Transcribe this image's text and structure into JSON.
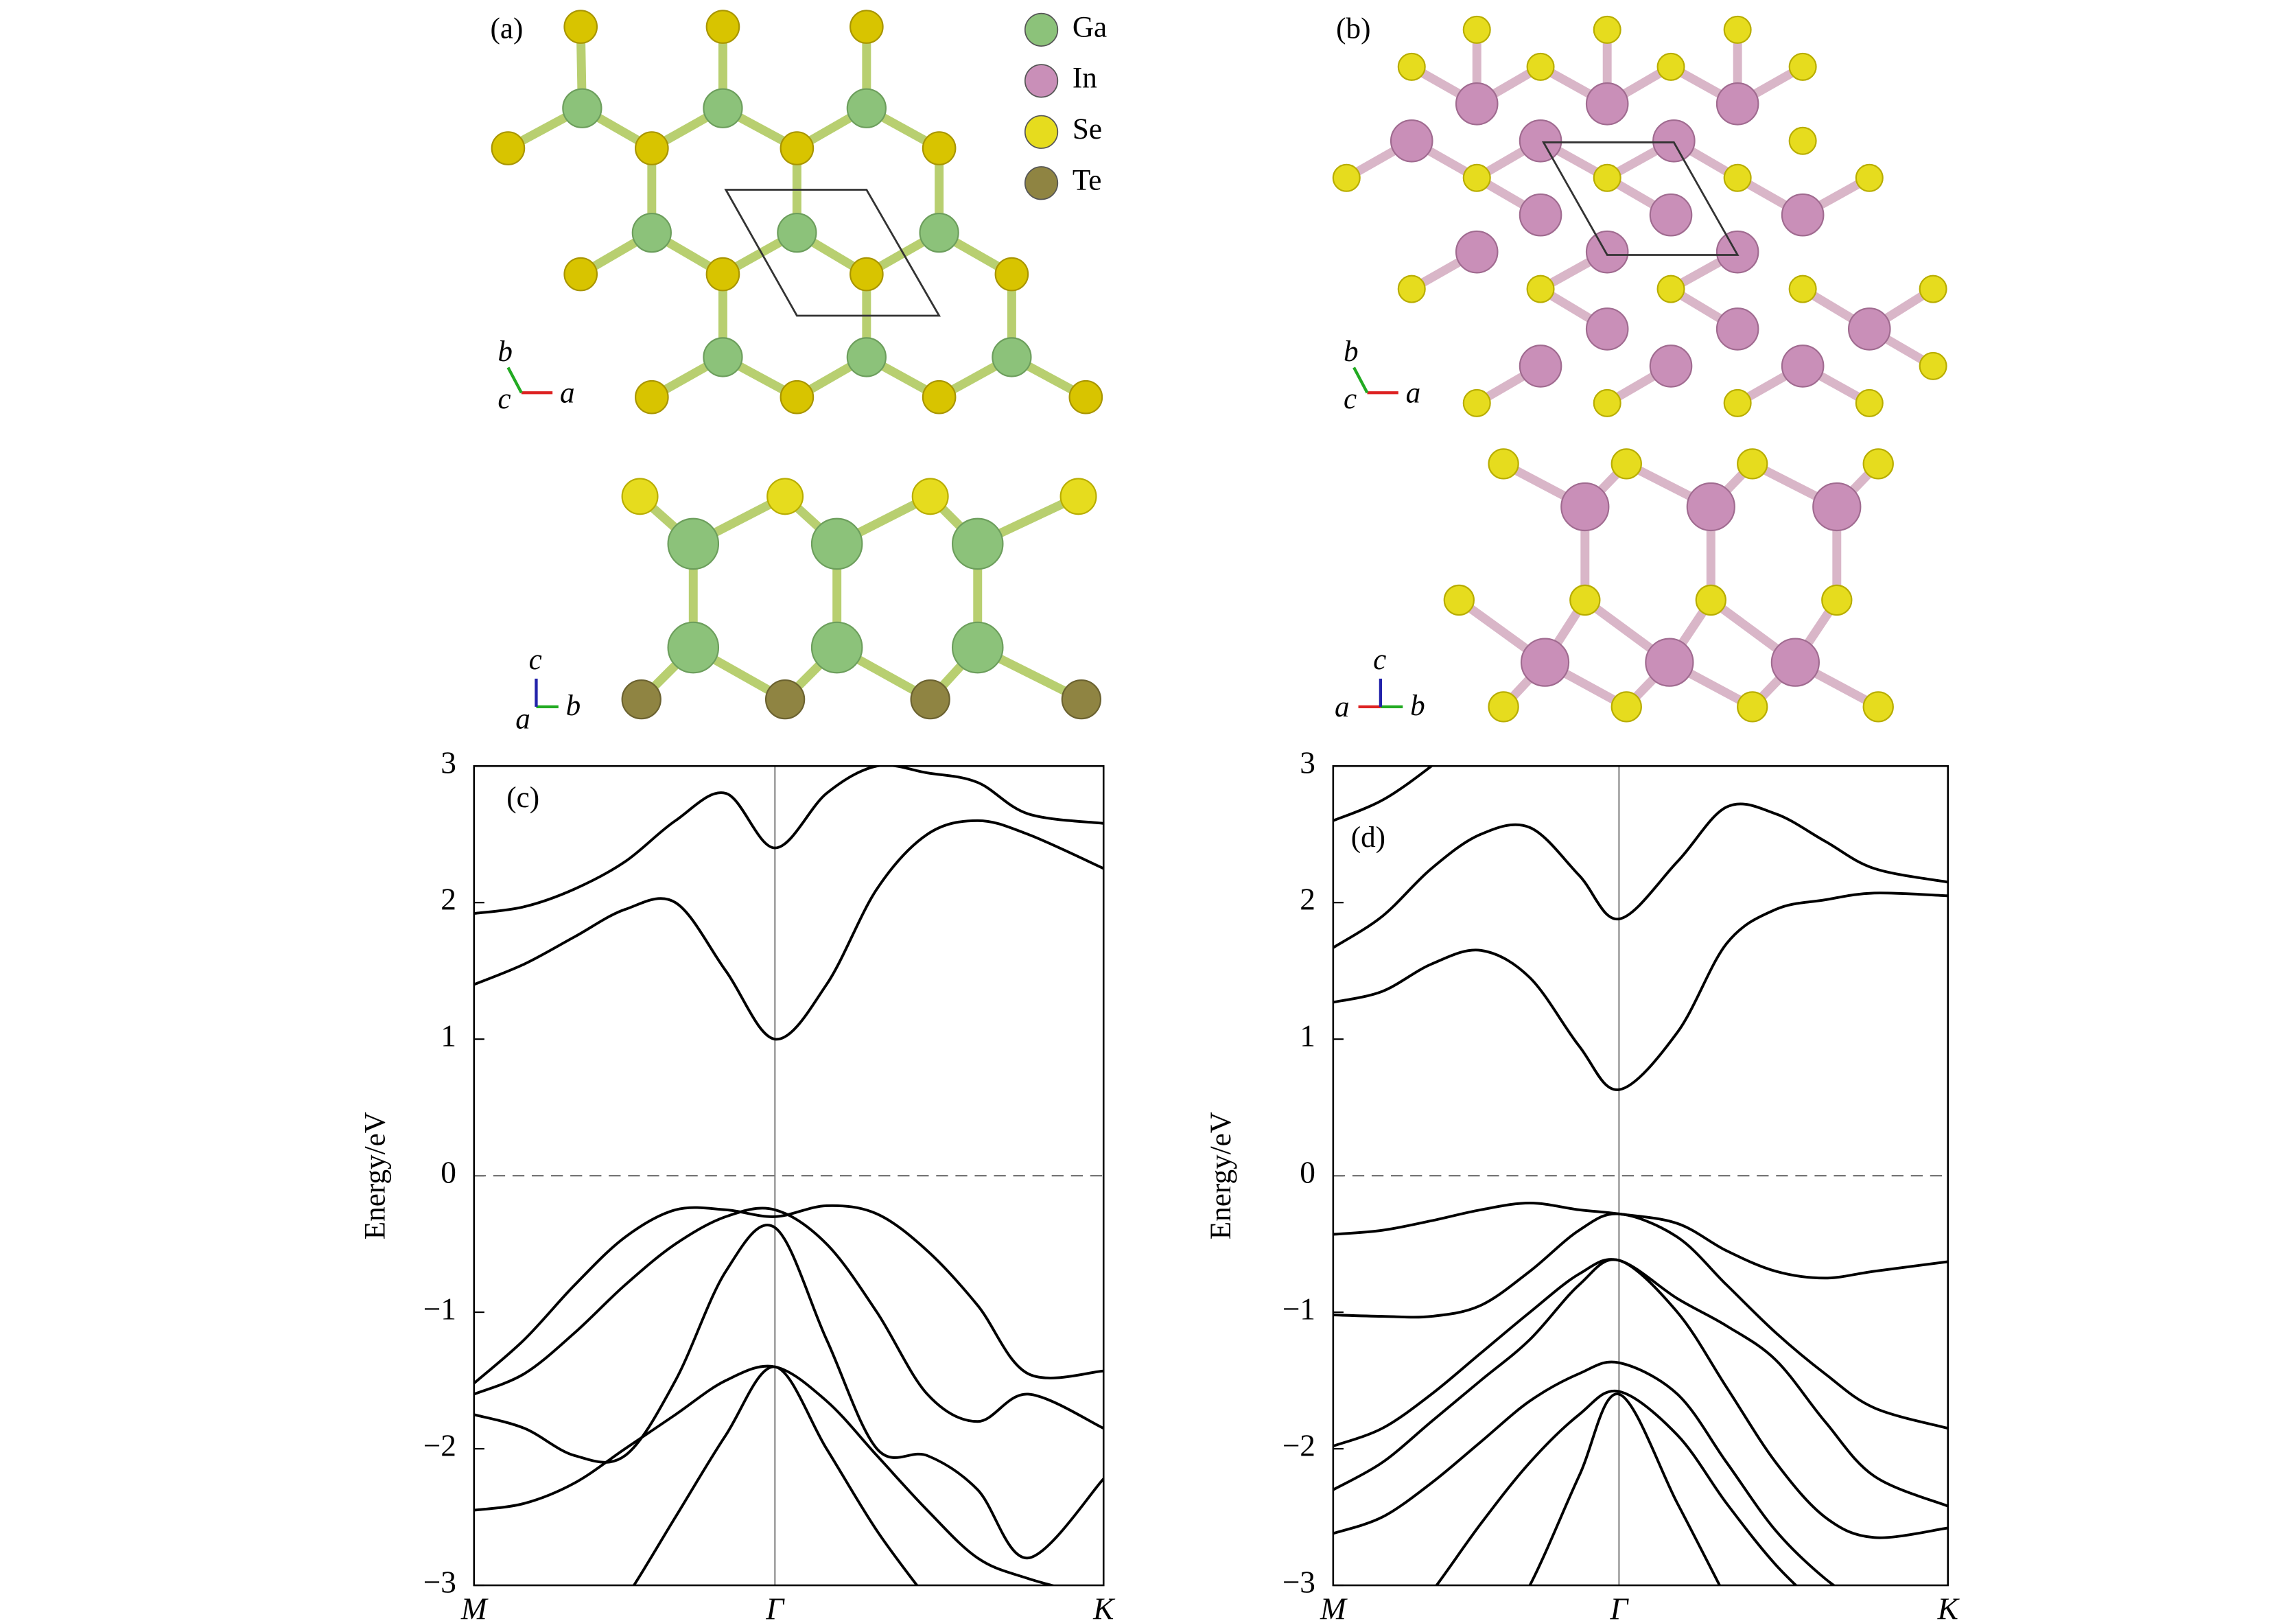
{
  "structures": [
    {
      "label": "(a)",
      "top_axes": [
        "b",
        "c",
        "a"
      ],
      "side_axes": [
        "c",
        "a",
        "b"
      ]
    },
    {
      "label": "(b)",
      "top_axes": [
        "b",
        "c",
        "a"
      ],
      "side_axes": [
        "c",
        "a",
        "b"
      ]
    }
  ],
  "legend": [
    {
      "name": "Ga",
      "color": "#8cc27a"
    },
    {
      "name": "In",
      "color": "#c98fb8"
    },
    {
      "name": "Se",
      "color": "#e6dc1e"
    },
    {
      "name": "Te",
      "color": "#8f8442"
    }
  ],
  "chart_data": [
    {
      "type": "line",
      "panel_label": "(c)",
      "ylabel": "Energy/eV",
      "color": "#000000",
      "x": [
        0,
        0.08,
        0.16,
        0.24,
        0.32,
        0.4,
        0.478,
        0.56,
        0.64,
        0.72,
        0.8,
        0.88,
        1.0
      ],
      "xlim": [
        0,
        1
      ],
      "xticks": [
        {
          "value": 0,
          "label": "M"
        },
        {
          "value": 0.478,
          "label": "Γ"
        },
        {
          "value": 1,
          "label": "K"
        }
      ],
      "ylim": [
        -3,
        3
      ],
      "yticks": [
        {
          "value": -3,
          "label": "−3"
        },
        {
          "value": -2,
          "label": "−2"
        },
        {
          "value": -1,
          "label": "−1"
        },
        0,
        1,
        2,
        3
      ],
      "hline": 0,
      "series": [
        {
          "values": [
            1.92,
            1.97,
            2.1,
            2.3,
            2.6,
            2.8,
            2.4,
            2.8,
            3.0,
            2.95,
            2.88,
            2.65,
            2.58
          ]
        },
        {
          "values": [
            1.4,
            1.55,
            1.75,
            1.95,
            2.0,
            1.5,
            1.0,
            1.4,
            2.1,
            2.5,
            2.6,
            2.5,
            2.25
          ]
        },
        {
          "values": [
            -1.52,
            -1.2,
            -0.8,
            -0.45,
            -0.25,
            -0.25,
            -0.3,
            -0.22,
            -0.28,
            -0.55,
            -0.95,
            -1.45,
            -1.43
          ]
        },
        {
          "values": [
            -1.6,
            -1.45,
            -1.15,
            -0.8,
            -0.5,
            -0.3,
            -0.25,
            -0.5,
            -1.0,
            -1.6,
            -1.8,
            -1.6,
            -1.85
          ]
        },
        {
          "values": [
            -1.75,
            -1.85,
            -2.05,
            -2.05,
            -1.5,
            -0.7,
            -0.38,
            -1.2,
            -2.0,
            -2.05,
            -2.3,
            -2.8,
            -2.22
          ]
        },
        {
          "values": [
            -2.45,
            -2.4,
            -2.25,
            -2.0,
            -1.75,
            -1.5,
            -1.4,
            -1.65,
            -2.05,
            -2.45,
            -2.8,
            -2.95,
            -3.1
          ]
        },
        {
          "values": [
            null,
            null,
            -3.6,
            -3.1,
            -2.5,
            -1.9,
            -1.4,
            -2.0,
            -2.6,
            -3.1,
            null,
            null,
            null
          ]
        }
      ]
    },
    {
      "type": "line",
      "panel_label": "(d)",
      "ylabel": "Energy/eV",
      "color": "#000000",
      "x": [
        0,
        0.08,
        0.16,
        0.24,
        0.32,
        0.4,
        0.465,
        0.56,
        0.64,
        0.72,
        0.8,
        0.88,
        1.0
      ],
      "xlim": [
        0,
        1
      ],
      "xticks": [
        {
          "value": 0,
          "label": "M"
        },
        {
          "value": 0.465,
          "label": "Γ"
        },
        {
          "value": 1,
          "label": "K"
        }
      ],
      "ylim": [
        -3,
        3
      ],
      "yticks": [
        {
          "value": -3,
          "label": "−3"
        },
        {
          "value": -2,
          "label": "−2"
        },
        {
          "value": -1,
          "label": "−1"
        },
        0,
        1,
        2,
        3
      ],
      "hline": 0,
      "series": [
        {
          "values": [
            2.6,
            2.75,
            3.0,
            3.3,
            null,
            null,
            null,
            null,
            null,
            null,
            null,
            null,
            null
          ]
        },
        {
          "values": [
            1.67,
            1.9,
            2.25,
            2.5,
            2.55,
            2.2,
            1.88,
            2.3,
            2.7,
            2.65,
            2.45,
            2.25,
            2.15
          ]
        },
        {
          "values": [
            1.27,
            1.35,
            1.55,
            1.65,
            1.45,
            0.95,
            0.63,
            1.05,
            1.7,
            1.95,
            2.02,
            2.07,
            2.05
          ]
        },
        {
          "values": [
            -0.43,
            -0.4,
            -0.33,
            -0.25,
            -0.2,
            -0.25,
            -0.28,
            -0.35,
            -0.55,
            -0.7,
            -0.75,
            -0.7,
            -0.63
          ]
        },
        {
          "values": [
            -1.02,
            -1.03,
            -1.03,
            -0.95,
            -0.7,
            -0.4,
            -0.28,
            -0.45,
            -0.8,
            -1.15,
            -1.45,
            -1.7,
            -1.85
          ]
        },
        {
          "values": [
            -1.98,
            -1.85,
            -1.6,
            -1.3,
            -1.0,
            -0.72,
            -0.62,
            -0.9,
            -1.1,
            -1.35,
            -1.8,
            -2.2,
            -2.42
          ]
        },
        {
          "values": [
            -2.3,
            -2.1,
            -1.8,
            -1.5,
            -1.2,
            -0.8,
            -0.62,
            -1.0,
            -1.55,
            -2.1,
            -2.5,
            -2.65,
            -2.58
          ]
        },
        {
          "values": [
            -2.62,
            -2.5,
            -2.25,
            -1.95,
            -1.65,
            -1.45,
            -1.37,
            -1.6,
            -2.1,
            -2.6,
            -2.95,
            -3.2,
            null
          ]
        },
        {
          "values": [
            null,
            -3.5,
            -3.05,
            -2.55,
            -2.1,
            -1.75,
            -1.58,
            -1.9,
            -2.4,
            -2.85,
            -3.2,
            null,
            null
          ]
        },
        {
          "values": [
            null,
            null,
            null,
            -3.6,
            -3.0,
            -2.2,
            -1.6,
            -2.4,
            -3.1,
            null,
            null,
            null,
            null
          ]
        }
      ]
    }
  ]
}
